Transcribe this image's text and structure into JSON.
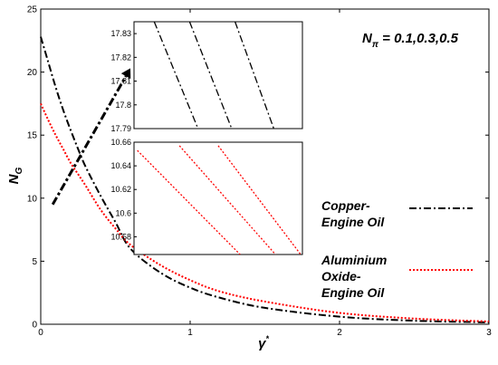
{
  "chart_data": {
    "type": "line",
    "xlabel": "γ",
    "xlabel_superscript": "*",
    "ylabel": "N",
    "ylabel_subscript": "G",
    "xlim": [
      0,
      3
    ],
    "ylim": [
      0,
      25
    ],
    "x_ticks": [
      "0",
      "1",
      "2",
      "3"
    ],
    "y_ticks": [
      "0",
      "5",
      "10",
      "15",
      "20",
      "25"
    ],
    "grid": false,
    "annotation": {
      "main": "N",
      "sub": "π",
      "rest": " = 0.1,0.3,0.5",
      "arrow": {
        "from": [
          0.08,
          9.5
        ],
        "to": [
          0.6,
          20.3
        ]
      }
    },
    "series": [
      {
        "name": "Copper-Engine Oil",
        "legend_lines": [
          "Copper-",
          "Engine Oil"
        ],
        "color": "#000000",
        "style": "dash-dot",
        "x": [
          0,
          0.05,
          0.1,
          0.15,
          0.2,
          0.25,
          0.3,
          0.4,
          0.5,
          0.6,
          0.8,
          1.0,
          1.2,
          1.5,
          2.0,
          2.5,
          3.0
        ],
        "y": [
          22.8,
          20.8,
          18.8,
          17.0,
          15.4,
          13.9,
          12.5,
          10.2,
          8.1,
          6.0,
          4.1,
          2.9,
          2.1,
          1.3,
          0.6,
          0.28,
          0.15
        ]
      },
      {
        "name": "Aluminium Oxide-Engine Oil",
        "legend_lines": [
          "Aluminium",
          "Oxide-",
          "Engine Oil"
        ],
        "color": "#ff0000",
        "style": "dotted",
        "x": [
          0,
          0.05,
          0.1,
          0.15,
          0.2,
          0.25,
          0.3,
          0.4,
          0.5,
          0.6,
          0.8,
          1.0,
          1.2,
          1.5,
          2.0,
          2.5,
          3.0
        ],
        "y": [
          17.5,
          16.2,
          15.0,
          13.9,
          12.8,
          11.9,
          11.0,
          9.1,
          7.6,
          6.3,
          4.7,
          3.5,
          2.6,
          1.8,
          0.9,
          0.45,
          0.22
        ]
      }
    ],
    "insets": [
      {
        "name": "copper-inset",
        "xlim": [
          0,
          1
        ],
        "ylim": [
          17.79,
          17.835
        ],
        "y_ticks": [
          "17.83",
          "17.82",
          "17.81",
          "17.8",
          "17.79"
        ],
        "y_tick_values": [
          17.83,
          17.82,
          17.81,
          17.8,
          17.79
        ],
        "color": "#000000",
        "style": "dash-dot",
        "lines": [
          {
            "x": [
              0.12,
              0.38
            ],
            "y": [
              17.835,
              17.79
            ]
          },
          {
            "x": [
              0.33,
              0.58
            ],
            "y": [
              17.835,
              17.79
            ]
          },
          {
            "x": [
              0.6,
              0.83
            ],
            "y": [
              17.835,
              17.79
            ]
          }
        ]
      },
      {
        "name": "alumina-inset",
        "xlim": [
          0,
          1
        ],
        "ylim": [
          10.565,
          10.66
        ],
        "y_ticks": [
          "10.66",
          "10.64",
          "10.62",
          "10.6",
          "10.58"
        ],
        "y_tick_values": [
          10.66,
          10.64,
          10.62,
          10.6,
          10.58
        ],
        "color": "#ff0000",
        "style": "dotted",
        "lines": [
          {
            "x": [
              0.02,
              0.63
            ],
            "y": [
              10.653,
              10.565
            ]
          },
          {
            "x": [
              0.27,
              0.84
            ],
            "y": [
              10.657,
              10.565
            ]
          },
          {
            "x": [
              0.5,
              0.99
            ],
            "y": [
              10.657,
              10.565
            ]
          }
        ]
      }
    ]
  }
}
